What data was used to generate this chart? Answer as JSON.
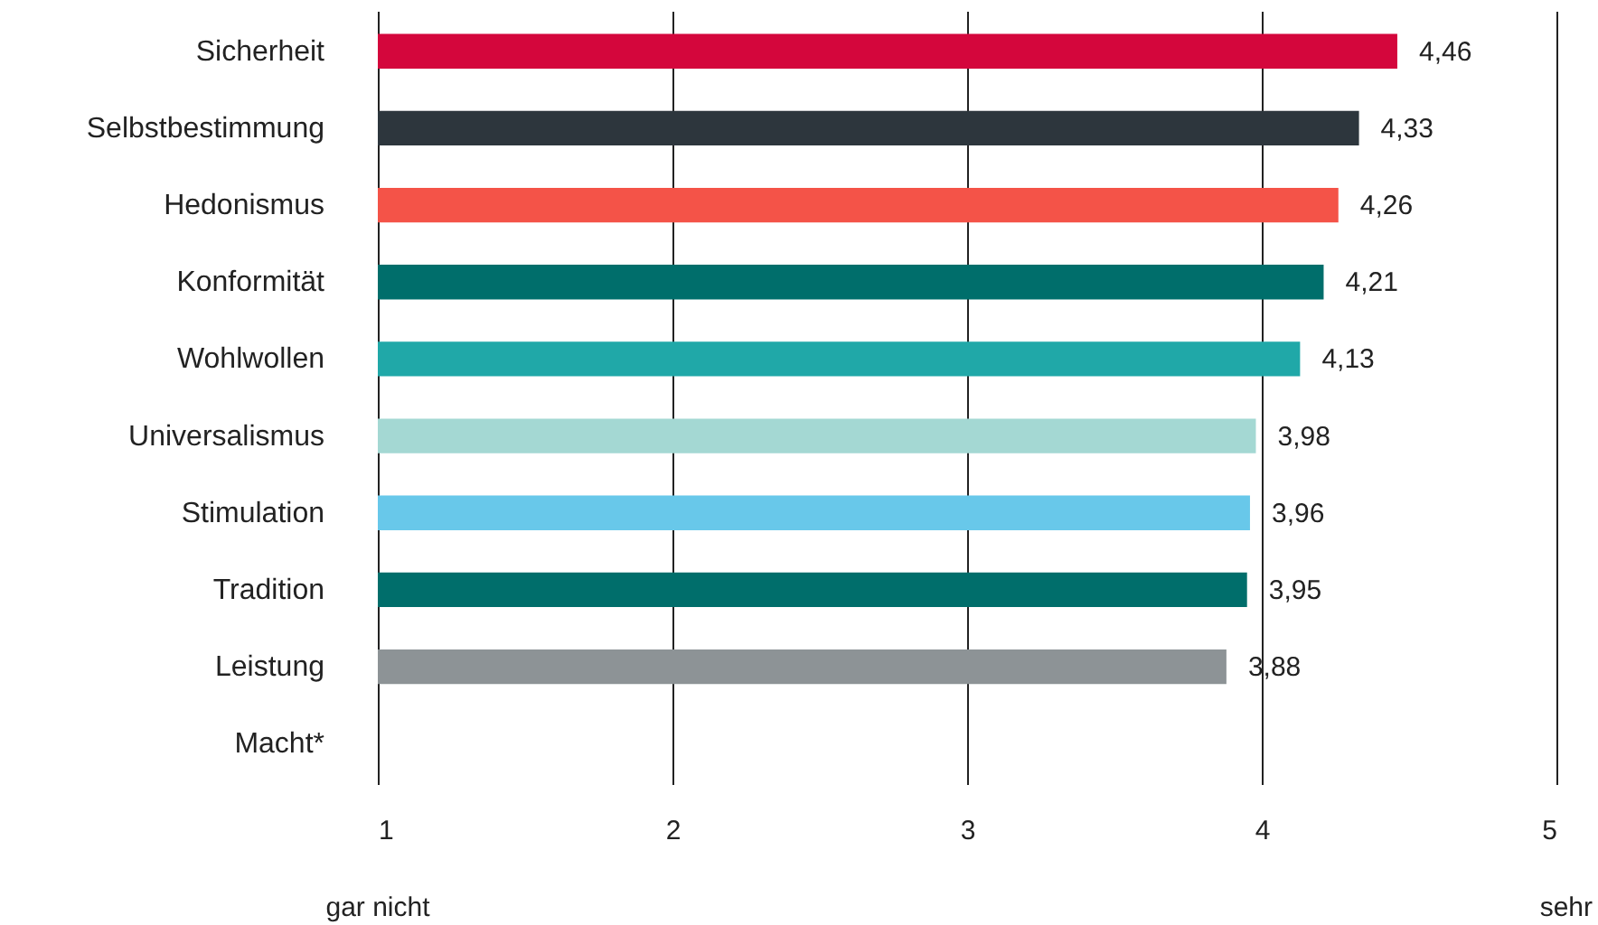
{
  "chart_data": {
    "type": "bar",
    "orientation": "horizontal",
    "categories": [
      "Sicherheit",
      "Selbstbestimmung",
      "Hedonismus",
      "Konformität",
      "Wohlwollen",
      "Universalismus",
      "Stimulation",
      "Tradition",
      "Leistung",
      "Macht*"
    ],
    "values": [
      4.46,
      4.33,
      4.26,
      4.21,
      4.13,
      3.98,
      3.96,
      3.95,
      3.88,
      null
    ],
    "value_labels": [
      "4,46",
      "4,33",
      "4,26",
      "4,21",
      "4,13",
      "3,98",
      "3,96",
      "3,95",
      "3,88",
      null
    ],
    "colors": [
      "#d4063c",
      "#2d363d",
      "#f45348",
      "#006e6b",
      "#20a8a8",
      "#a4d8d3",
      "#68c8ea",
      "#006e6b",
      "#8d9396",
      "#8d9396"
    ],
    "xlim": [
      1,
      5
    ],
    "xticks": [
      1,
      2,
      3,
      4,
      5
    ],
    "grid": "x",
    "annotations": [
      "gar nicht",
      "sehr"
    ]
  }
}
